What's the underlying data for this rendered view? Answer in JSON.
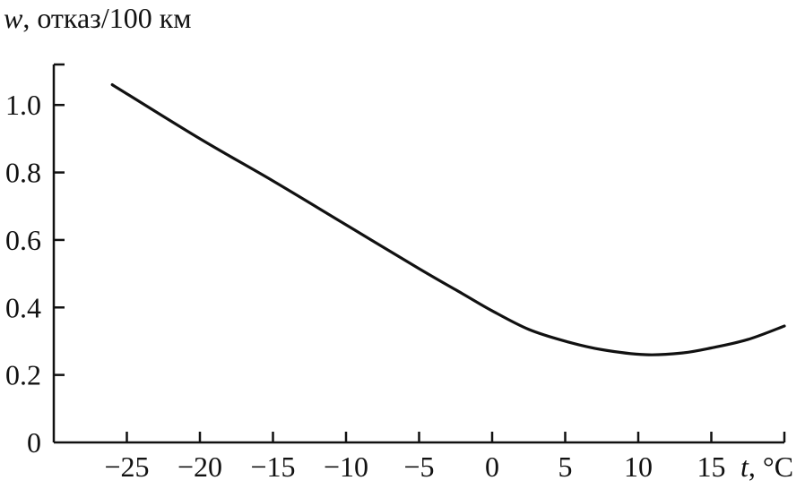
{
  "chart_data": {
    "type": "line",
    "title": "",
    "ylabel_var": "w",
    "ylabel_unit": ", отказ/100 км",
    "xlabel_var": "t",
    "xlabel_unit": ", °C",
    "xlim": [
      -30,
      20
    ],
    "ylim": [
      0,
      1.12
    ],
    "grid": false,
    "x_ticks": [
      -25,
      -20,
      -15,
      -10,
      -5,
      0,
      5,
      10,
      15,
      20
    ],
    "x_tick_labels": [
      "−25",
      "−20",
      "−15",
      "−10",
      "−5",
      "0",
      "5",
      "10",
      "15"
    ],
    "y_ticks": [
      0,
      0.2,
      0.4,
      0.6,
      0.8,
      1.0
    ],
    "y_tick_labels": [
      "0",
      "0.2",
      "0.4",
      "0.6",
      "0.8",
      "1.0"
    ],
    "series": [
      {
        "color": "#111111",
        "x": [
          -26,
          -20,
          -15,
          -10,
          -5,
          -2,
          0,
          2.5,
          5,
          7.5,
          10.5,
          13,
          15,
          17.5,
          20
        ],
        "y": [
          1.06,
          0.9,
          0.775,
          0.645,
          0.515,
          0.44,
          0.39,
          0.335,
          0.3,
          0.275,
          0.26,
          0.265,
          0.28,
          0.305,
          0.345
        ]
      }
    ]
  }
}
